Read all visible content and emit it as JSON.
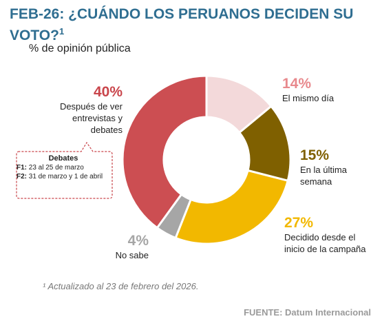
{
  "chart_data": {
    "type": "donut",
    "title": "FEB-26: ¿CUÁNDO LOS PERUANOS DECIDEN SU VOTO?",
    "title_note": "1",
    "subtitle": "% de opinión pública",
    "categories": [
      "El mismo día",
      "En la última semana",
      "Decidido desde el inicio de la campaña",
      "No sabe",
      "Después de ver entrevistas y debates"
    ],
    "values": [
      14,
      15,
      27,
      4,
      40
    ],
    "value_labels": [
      "14%",
      "15%",
      "27%",
      "4%",
      "40%"
    ],
    "colors": [
      "#f3d9da",
      "#7f6000",
      "#f2b800",
      "#a6a6a6",
      "#cc4e52"
    ],
    "label_colors": [
      "#e8898d",
      "#7f6000",
      "#f2b800",
      "#a6a6a6",
      "#c9454b"
    ],
    "callout": {
      "title": "Debates",
      "items": [
        {
          "label": "F1:",
          "text": "23 al 25 de marzo"
        },
        {
          "label": "F2:",
          "text": "31 de marzo y 1 de abril"
        }
      ]
    },
    "footnote": "¹ Actualizado al 23 de febrero del 2026.",
    "source": "FUENTE: Datum Internacional"
  }
}
